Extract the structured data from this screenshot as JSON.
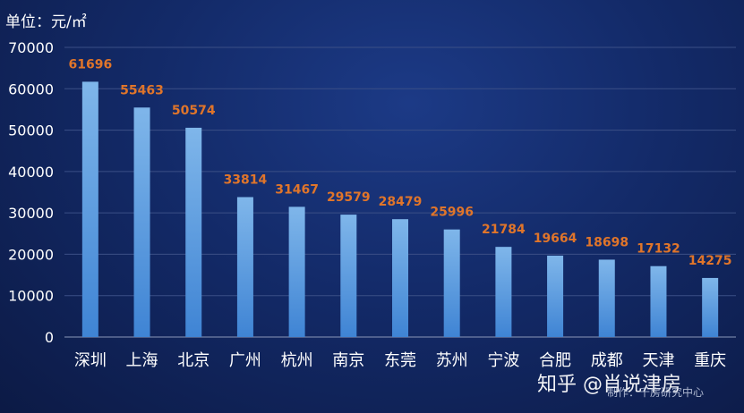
{
  "chart_data": {
    "type": "bar",
    "unit_label": "单位：元/㎡",
    "categories": [
      "深圳",
      "上海",
      "北京",
      "广州",
      "杭州",
      "南京",
      "东莞",
      "苏州",
      "宁波",
      "合肥",
      "成都",
      "天津",
      "重庆"
    ],
    "values": [
      61696,
      55463,
      50574,
      33814,
      31467,
      29579,
      28479,
      25996,
      21784,
      19664,
      18698,
      17132,
      14275
    ],
    "y_ticks": [
      0,
      10000,
      20000,
      30000,
      40000,
      50000,
      60000,
      70000
    ],
    "ylim": [
      0,
      70000
    ],
    "grid": true,
    "legend": "none",
    "colors": {
      "bar_top": "#7fb6ea",
      "bar_bottom": "#3f84d4",
      "value_label": "#e0752a",
      "axis_text": "#ffffff",
      "grid": "#3b4f86"
    }
  },
  "watermark": "知乎 @肖说津房",
  "credit": "制作：千房研究中心"
}
